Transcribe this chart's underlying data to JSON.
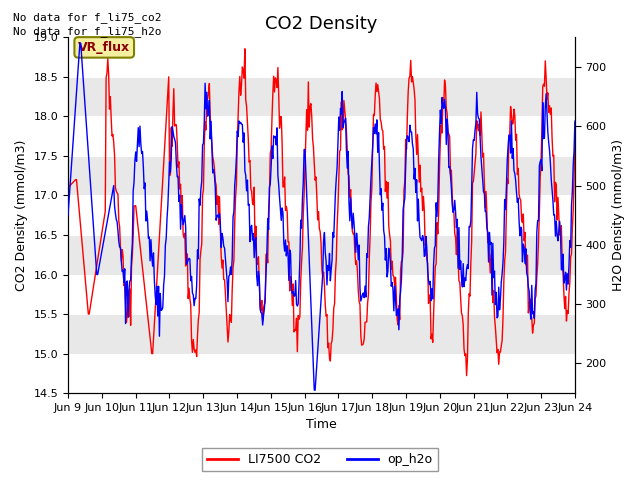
{
  "title": "CO2 Density",
  "xlabel": "Time",
  "ylabel_left": "CO2 Density (mmol/m3)",
  "ylabel_right": "H2O Density (mmol/m3)",
  "ylim_left": [
    14.5,
    19.0
  ],
  "ylim_right": [
    150,
    750
  ],
  "annotation_lines": [
    "No data for f_li75_co2",
    "No data for f_li75_h2o"
  ],
  "vr_flux_label": "VR_flux",
  "legend_entries": [
    "LI7500 CO2",
    "op_h2o"
  ],
  "legend_colors": [
    "red",
    "blue"
  ],
  "background_color": "#ffffff",
  "plot_bg_color": "#e8e8e8",
  "x_ticks": [
    "Jun 9",
    "Jun 10",
    "Jun 11",
    "Jun 12",
    "Jun 13",
    "Jun 14",
    "Jun 15",
    "Jun 16",
    "Jun 17",
    "Jun 18",
    "Jun 19",
    "Jun 20",
    "Jun 21",
    "Jun 22",
    "Jun 23",
    "Jun 24"
  ],
  "num_days": 15,
  "seed": 42
}
